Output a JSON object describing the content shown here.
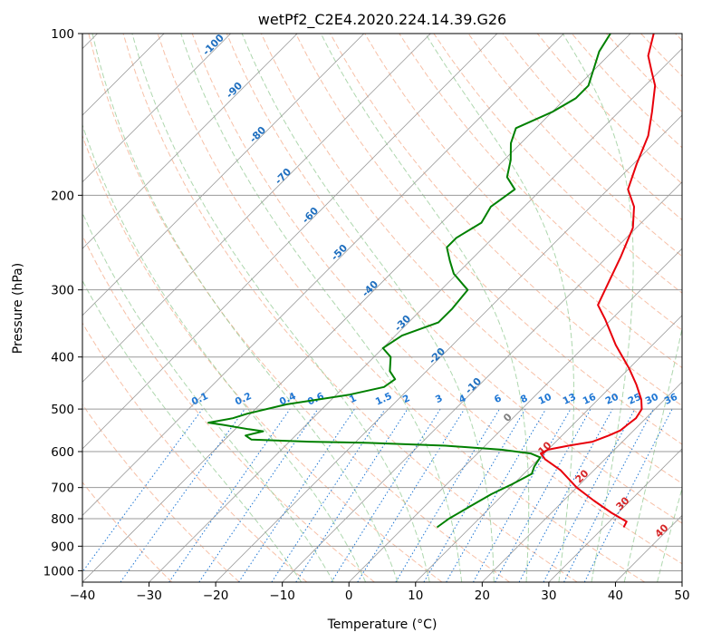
{
  "chart_data": {
    "type": "skew-t",
    "title": "wetPf2_C2E4.2020.224.14.39.G26",
    "xlabel": "Temperature (°C)",
    "ylabel": "Pressure (hPa)",
    "xlim": [
      -40,
      50
    ],
    "ylim": [
      1050,
      100
    ],
    "y_scale": "log",
    "x_ticks": [
      "−40",
      "−30",
      "−20",
      "−10",
      "0",
      "10",
      "20",
      "30",
      "40",
      "50"
    ],
    "x_tick_values": [
      -40,
      -30,
      -20,
      -10,
      0,
      10,
      20,
      30,
      40,
      50
    ],
    "y_ticks": [
      "100",
      "200",
      "300",
      "400",
      "500",
      "600",
      "700",
      "800",
      "900",
      "1000"
    ],
    "y_tick_values": [
      100,
      200,
      300,
      400,
      500,
      600,
      700,
      800,
      900,
      1000
    ],
    "grid": true,
    "colors": {
      "temperature": "#e8000b",
      "dewpoint": "#008000",
      "isotherm": "#9a9a9a",
      "dry_adiabat": "#f4a582",
      "moist_adiabat": "#8cc68c",
      "mixing_ratio": "#1f77d4",
      "isotherm_label_blue": "#1f6fbf",
      "isotherm_label_red": "#d62728",
      "isotherm_label_gray": "#7f7f7f"
    },
    "series": [
      {
        "name": "temperature",
        "points": [
          [
            830,
            33.0
          ],
          [
            810,
            32.6
          ],
          [
            780,
            29.0
          ],
          [
            740,
            24.5
          ],
          [
            700,
            20.0
          ],
          [
            650,
            15.0
          ],
          [
            620,
            11.0
          ],
          [
            605,
            9.5
          ],
          [
            595,
            10.0
          ],
          [
            585,
            12.5
          ],
          [
            575,
            15.5
          ],
          [
            560,
            17.0
          ],
          [
            548,
            18.0
          ],
          [
            535,
            18.2
          ],
          [
            520,
            18.5
          ],
          [
            500,
            18.0
          ],
          [
            480,
            16.5
          ],
          [
            450,
            13.5
          ],
          [
            420,
            10.0
          ],
          [
            380,
            4.5
          ],
          [
            340,
            -1.0
          ],
          [
            320,
            -4.2
          ],
          [
            290,
            -6.0
          ],
          [
            260,
            -8.0
          ],
          [
            230,
            -10.5
          ],
          [
            210,
            -13.5
          ],
          [
            195,
            -17.0
          ],
          [
            175,
            -19.5
          ],
          [
            155,
            -22.0
          ],
          [
            140,
            -25.0
          ],
          [
            125,
            -28.5
          ],
          [
            118,
            -31.0
          ],
          [
            110,
            -34.0
          ],
          [
            100,
            -36.5
          ]
        ]
      },
      {
        "name": "dewpoint",
        "points": [
          [
            830,
            5.0
          ],
          [
            800,
            5.5
          ],
          [
            760,
            6.8
          ],
          [
            720,
            8.2
          ],
          [
            690,
            9.8
          ],
          [
            660,
            11.2
          ],
          [
            640,
            10.5
          ],
          [
            615,
            10.0
          ],
          [
            605,
            8.0
          ],
          [
            595,
            3.0
          ],
          [
            585,
            -6.0
          ],
          [
            578,
            -18.0
          ],
          [
            575,
            -27.0
          ],
          [
            570,
            -36.0
          ],
          [
            560,
            -37.5
          ],
          [
            550,
            -35.5
          ],
          [
            545,
            -38.0
          ],
          [
            535,
            -42.5
          ],
          [
            530,
            -45.0
          ],
          [
            520,
            -42.0
          ],
          [
            510,
            -40.5
          ],
          [
            490,
            -36.0
          ],
          [
            470,
            -28.0
          ],
          [
            455,
            -24.0
          ],
          [
            440,
            -23.5
          ],
          [
            425,
            -25.5
          ],
          [
            400,
            -27.5
          ],
          [
            385,
            -30.0
          ],
          [
            365,
            -29.0
          ],
          [
            345,
            -25.5
          ],
          [
            325,
            -25.5
          ],
          [
            300,
            -26.0
          ],
          [
            280,
            -30.5
          ],
          [
            265,
            -33.0
          ],
          [
            250,
            -35.5
          ],
          [
            240,
            -35.5
          ],
          [
            225,
            -34.0
          ],
          [
            210,
            -35.0
          ],
          [
            195,
            -34.0
          ],
          [
            185,
            -37.0
          ],
          [
            172,
            -39.0
          ],
          [
            160,
            -41.5
          ],
          [
            150,
            -43.0
          ],
          [
            140,
            -40.0
          ],
          [
            132,
            -38.5
          ],
          [
            125,
            -38.5
          ],
          [
            115,
            -40.5
          ],
          [
            108,
            -42.0
          ],
          [
            100,
            -43.0
          ]
        ]
      }
    ],
    "dry_adiabat_labels": [
      "-100",
      "-90",
      "-80",
      "-70",
      "-60",
      "-50",
      "-40",
      "-30",
      "-20",
      "-10",
      "0",
      "10",
      "20",
      "30",
      "40"
    ],
    "mixing_ratio_labels": [
      "0.1",
      "0.2",
      "0.4",
      "0.6",
      "1",
      "1.5",
      "2",
      "3",
      "4",
      "6",
      "8",
      "10",
      "13",
      "16",
      "20",
      "25",
      "30",
      "36"
    ],
    "mixing_ratio_values": [
      0.1,
      0.2,
      0.4,
      0.6,
      1,
      1.5,
      2,
      3,
      4,
      6,
      8,
      10,
      13,
      16,
      20,
      25,
      30,
      36
    ]
  }
}
